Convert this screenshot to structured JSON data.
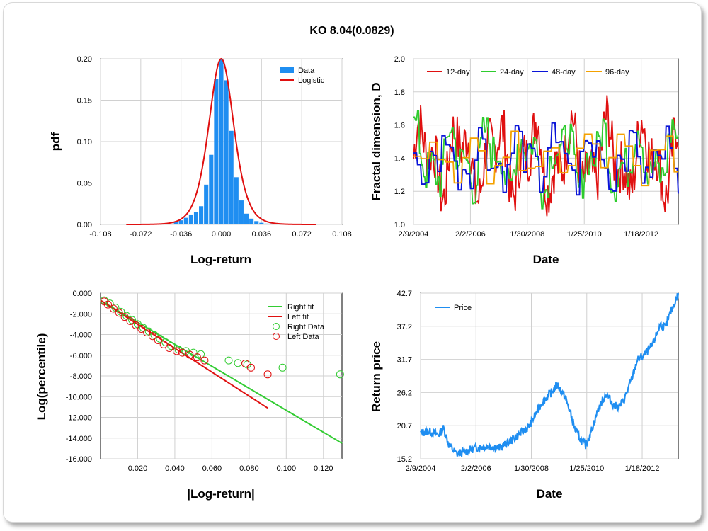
{
  "title": "KO  8.04(0.0829)",
  "colors": {
    "hist": "#1f8ef1",
    "logistic": "#e01010",
    "d12": "#e01010",
    "d24": "#2ecc2e",
    "d48": "#0a14d8",
    "d96": "#f4a100",
    "price": "#1f8ef1",
    "right": "#33cc33",
    "left": "#e01010"
  },
  "chart_data": [
    {
      "type": "bar",
      "id": "pdf",
      "xlabel": "Log-return",
      "ylabel": "pdf",
      "xlim": [
        -0.108,
        0.108
      ],
      "ylim": [
        0,
        0.2
      ],
      "xticks": [
        "-0.108",
        "-0.072",
        "-0.036",
        "0.000",
        "0.036",
        "0.072",
        "0.108"
      ],
      "yticks": [
        "0.00",
        "0.05",
        "0.10",
        "0.15",
        "0.20"
      ],
      "legend": [
        "Data",
        "Logistic"
      ],
      "legend_position": "top-right",
      "bin_width": 0.0045,
      "bin_centers": [
        -0.0405,
        -0.036,
        -0.0315,
        -0.027,
        -0.0225,
        -0.018,
        -0.0135,
        -0.009,
        -0.0045,
        0.0,
        0.0045,
        0.009,
        0.0135,
        0.018,
        0.0225,
        0.027,
        0.0315,
        0.036,
        0.0405,
        0.045
      ],
      "values": [
        0.003,
        0.005,
        0.008,
        0.012,
        0.015,
        0.022,
        0.048,
        0.084,
        0.176,
        0.2,
        0.174,
        0.113,
        0.057,
        0.029,
        0.013,
        0.007,
        0.004,
        0.002,
        0.001,
        0.001
      ]
    },
    {
      "type": "line",
      "id": "fractal",
      "xlabel": "Date",
      "ylabel": "Fractal dimension, D",
      "ylim": [
        1.0,
        2.0
      ],
      "xticks": [
        "2/9/2004",
        "2/2/2006",
        "1/30/2008",
        "1/25/2010",
        "1/18/2012"
      ],
      "yticks": [
        "1.0",
        "1.2",
        "1.4",
        "1.6",
        "1.8",
        "2.0"
      ],
      "legend_position": "top",
      "series": [
        {
          "name": "12-day",
          "window": 12,
          "volatility": 0.2,
          "base": 1.4
        },
        {
          "name": "24-day",
          "window": 24,
          "volatility": 0.16,
          "base": 1.4
        },
        {
          "name": "48-day",
          "window": 48,
          "volatility": 0.13,
          "base": 1.4
        },
        {
          "name": "96-day",
          "window": 96,
          "volatility": 0.1,
          "base": 1.42
        }
      ]
    },
    {
      "type": "scatter",
      "id": "tail",
      "xlabel": "|Log-return|",
      "ylabel": "Log(percentile)",
      "xlim": [
        0,
        0.13
      ],
      "ylim": [
        -16,
        0
      ],
      "xticks": [
        "0.020",
        "0.040",
        "0.060",
        "0.080",
        "0.100",
        "0.120"
      ],
      "yticks": [
        "0.000",
        "-2.000",
        "-4.000",
        "-6.000",
        "-8.000",
        "-10.000",
        "-12.000",
        "-14.000",
        "-16.000"
      ],
      "legend": [
        "Right fit",
        "Left fit",
        "Right Data",
        "Left Data"
      ],
      "legend_position": "top-right",
      "right_fit": [
        [
          0.0,
          -0.7
        ],
        [
          0.13,
          -14.5
        ]
      ],
      "left_fit": [
        [
          0.0,
          -0.7
        ],
        [
          0.09,
          -11.1
        ]
      ],
      "right_data": [
        [
          0.002,
          -0.7
        ],
        [
          0.005,
          -1.0
        ],
        [
          0.008,
          -1.4
        ],
        [
          0.011,
          -1.8
        ],
        [
          0.014,
          -2.2
        ],
        [
          0.017,
          -2.6
        ],
        [
          0.02,
          -3.0
        ],
        [
          0.023,
          -3.35
        ],
        [
          0.026,
          -3.7
        ],
        [
          0.029,
          -4.05
        ],
        [
          0.032,
          -4.4
        ],
        [
          0.035,
          -4.75
        ],
        [
          0.038,
          -5.1
        ],
        [
          0.042,
          -5.45
        ],
        [
          0.046,
          -5.6
        ],
        [
          0.05,
          -5.75
        ],
        [
          0.054,
          -5.9
        ],
        [
          0.069,
          -6.5
        ],
        [
          0.074,
          -6.75
        ],
        [
          0.079,
          -6.9
        ],
        [
          0.098,
          -7.2
        ],
        [
          0.129,
          -7.85
        ]
      ],
      "left_data": [
        [
          0.002,
          -0.8
        ],
        [
          0.004,
          -1.1
        ],
        [
          0.007,
          -1.5
        ],
        [
          0.01,
          -1.9
        ],
        [
          0.013,
          -2.3
        ],
        [
          0.016,
          -2.7
        ],
        [
          0.019,
          -3.1
        ],
        [
          0.022,
          -3.45
        ],
        [
          0.025,
          -3.8
        ],
        [
          0.028,
          -4.15
        ],
        [
          0.031,
          -4.55
        ],
        [
          0.034,
          -4.95
        ],
        [
          0.037,
          -5.3
        ],
        [
          0.041,
          -5.6
        ],
        [
          0.044,
          -5.75
        ],
        [
          0.048,
          -5.95
        ],
        [
          0.052,
          -6.2
        ],
        [
          0.056,
          -6.5
        ],
        [
          0.078,
          -6.8
        ],
        [
          0.081,
          -7.2
        ],
        [
          0.09,
          -7.85
        ]
      ]
    },
    {
      "type": "line",
      "id": "price",
      "xlabel": "Date",
      "ylabel": "Return price",
      "ylim": [
        15.2,
        42.7
      ],
      "xticks": [
        "2/9/2004",
        "2/2/2006",
        "1/30/2008",
        "1/25/2010",
        "1/18/2012"
      ],
      "yticks": [
        "42.7",
        "37.2",
        "31.7",
        "26.2",
        "20.7",
        "15.2"
      ],
      "legend": [
        "Price"
      ],
      "legend_position": "top-left",
      "anchors": [
        [
          0.0,
          19.5
        ],
        [
          0.03,
          19.8
        ],
        [
          0.07,
          19.2
        ],
        [
          0.09,
          20.3
        ],
        [
          0.11,
          17.5
        ],
        [
          0.14,
          16.0
        ],
        [
          0.18,
          16.5
        ],
        [
          0.22,
          17.1
        ],
        [
          0.27,
          17.3
        ],
        [
          0.31,
          17.0
        ],
        [
          0.36,
          18.5
        ],
        [
          0.42,
          20.5
        ],
        [
          0.47,
          24.5
        ],
        [
          0.51,
          26.3
        ],
        [
          0.53,
          27.5
        ],
        [
          0.56,
          25.5
        ],
        [
          0.58,
          23.0
        ],
        [
          0.6,
          20.0
        ],
        [
          0.62,
          18.5
        ],
        [
          0.64,
          17.4
        ],
        [
          0.66,
          19.5
        ],
        [
          0.69,
          23.5
        ],
        [
          0.72,
          26.0
        ],
        [
          0.75,
          24.0
        ],
        [
          0.77,
          23.8
        ],
        [
          0.79,
          25.0
        ],
        [
          0.82,
          28.5
        ],
        [
          0.84,
          31.5
        ],
        [
          0.87,
          32.5
        ],
        [
          0.9,
          34.0
        ],
        [
          0.93,
          37.5
        ],
        [
          0.95,
          37.0
        ],
        [
          0.97,
          39.5
        ],
        [
          1.0,
          42.5
        ]
      ]
    }
  ]
}
